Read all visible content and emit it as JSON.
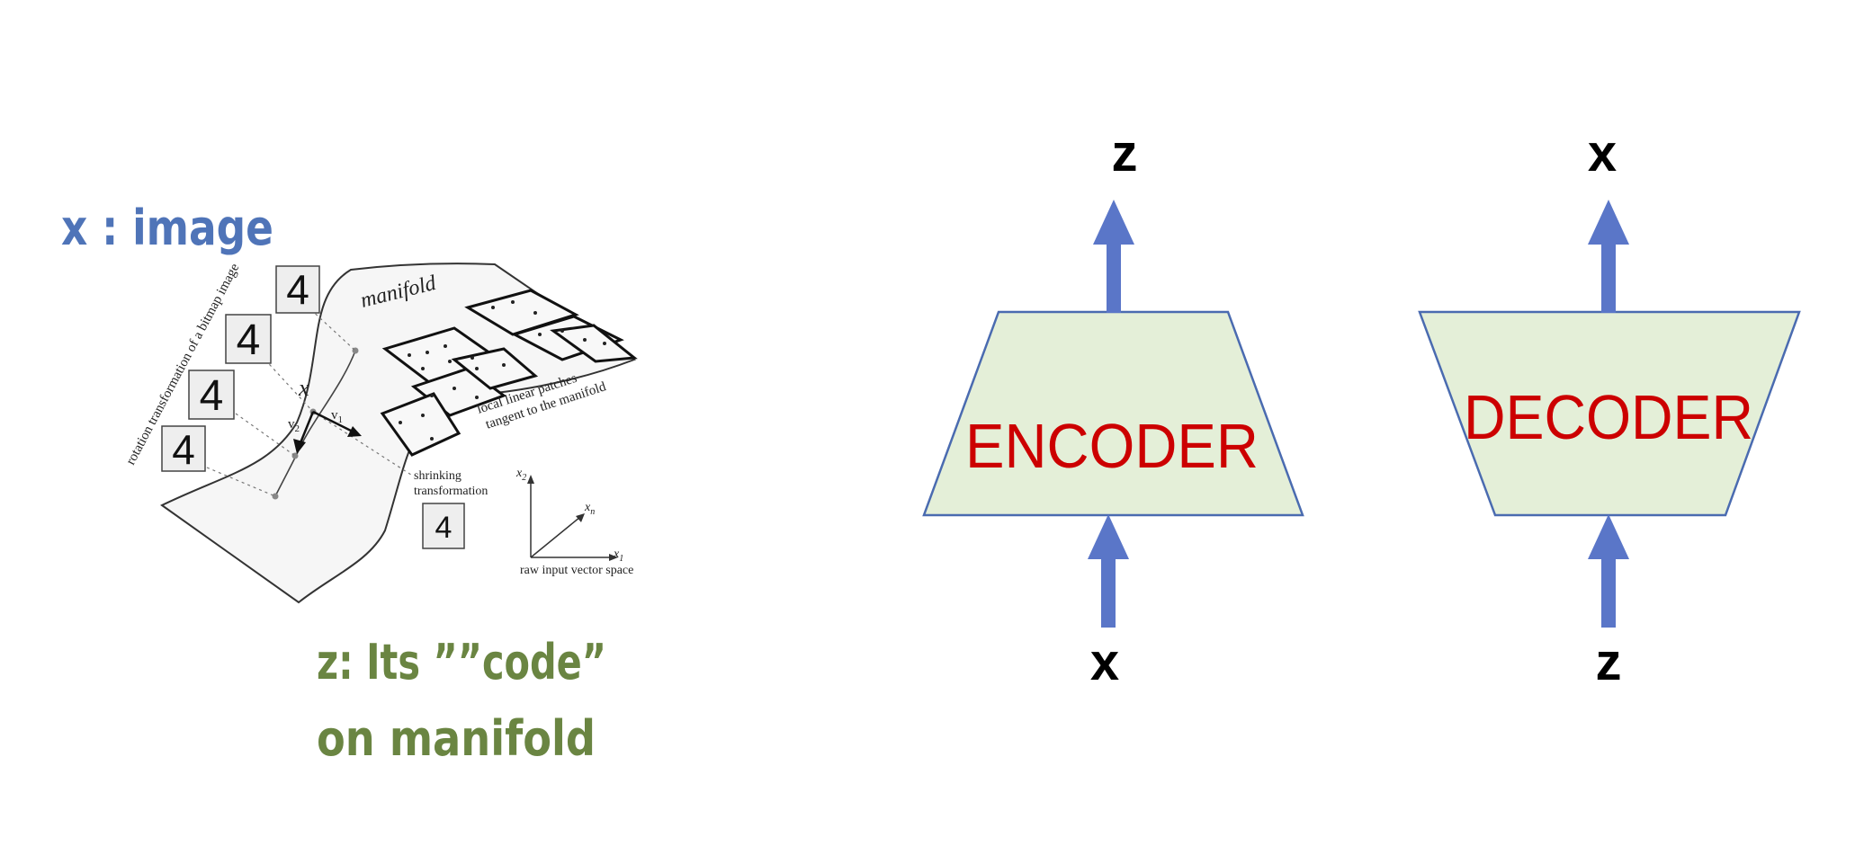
{
  "left_figure": {
    "x_label": "x : image",
    "z_label_line1": "z: Its ””code”",
    "z_label_line2": "on manifold",
    "manifold_title": "manifold",
    "rotation_text": "rotation transformation of a bitmap image",
    "point_label": "x",
    "vector_v1": "v",
    "vector_v1_sub": "1",
    "vector_v2": "v",
    "vector_v2_sub": "2",
    "patches_text_line1": "local linear patches",
    "patches_text_line2": "tangent to the manifold",
    "shrinking_line1": "shrinking",
    "shrinking_line2": "transformation",
    "digit": "4",
    "axis_x2": "x",
    "axis_x2_sub": "2",
    "axis_xn": "x",
    "axis_xn_sub": "n",
    "axis_x1": "x",
    "axis_x1_sub": "1",
    "raw_space": "raw input vector space"
  },
  "encoder": {
    "label": "ENCODER",
    "input": "x",
    "output": "z"
  },
  "decoder": {
    "label": "DECODER",
    "input": "z",
    "output": "x"
  },
  "colors": {
    "box_fill": "#e4efd8",
    "box_stroke": "#4a6bb0",
    "arrow": "#5a76c8",
    "block_text": "#cc0000",
    "x_label": "#4f74b8",
    "z_label": "#6a8542"
  }
}
